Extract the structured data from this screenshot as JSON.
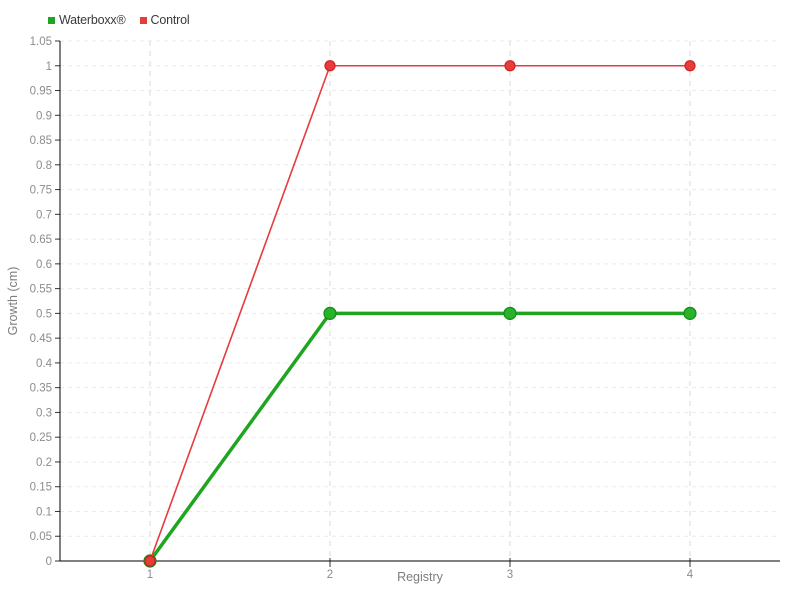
{
  "chart_data": {
    "type": "line",
    "title": "",
    "xlabel": "Registry",
    "ylabel": "Growth (cm)",
    "x": [
      1,
      2,
      3,
      4
    ],
    "series": [
      {
        "name": "Waterboxx®",
        "color": "#1fa51f",
        "marker_fill": "#2ab32a",
        "marker_stroke": "#118a11",
        "line_width": 3.5,
        "marker_radius": 6,
        "values": [
          0,
          0.5,
          0.5,
          0.5
        ]
      },
      {
        "name": "Control",
        "color": "#e83b3b",
        "marker_fill": "#e83b3b",
        "marker_stroke": "#cf2323",
        "line_width": 1.6,
        "marker_radius": 5,
        "values": [
          0,
          1,
          1,
          1
        ]
      }
    ],
    "xlim": [
      0.5,
      4.5
    ],
    "ylim": [
      0,
      1.05
    ],
    "y_tick_step": 0.05,
    "x_ticks": [
      1,
      2,
      3,
      4
    ],
    "grid": {
      "horizontal": true,
      "vertical": true,
      "h_color": "#eaeaea",
      "v_color": "#d8d8d8",
      "h_dash": "4 4",
      "v_dash": "5 5"
    },
    "legend_position": "top-left",
    "axis_color": "#000000",
    "tick_color": "#333333",
    "tick_label_color": "#8c8c8c",
    "axis_title_color": "#7d7d7d"
  },
  "legend": {
    "items": [
      {
        "label": "Waterboxx®",
        "color": "#1fa51f"
      },
      {
        "label": "Control",
        "color": "#e83b3b"
      }
    ]
  }
}
